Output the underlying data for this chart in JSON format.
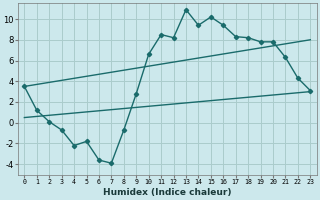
{
  "xlabel": "Humidex (Indice chaleur)",
  "background_color": "#cce8ec",
  "grid_color": "#aacccc",
  "line_color": "#1a6b6b",
  "xlim": [
    -0.5,
    23.5
  ],
  "ylim": [
    -5.0,
    11.5
  ],
  "xticks": [
    0,
    1,
    2,
    3,
    4,
    5,
    6,
    7,
    8,
    9,
    10,
    11,
    12,
    13,
    14,
    15,
    16,
    17,
    18,
    19,
    20,
    21,
    22,
    23
  ],
  "yticks": [
    -4,
    -2,
    0,
    2,
    4,
    6,
    8,
    10
  ],
  "line1_x": [
    0,
    1,
    2,
    3,
    4,
    5,
    6,
    7,
    8,
    9,
    10,
    11,
    12,
    13,
    14,
    15,
    16,
    17,
    18,
    19,
    20,
    21,
    22,
    23
  ],
  "line1_y": [
    3.5,
    1.2,
    0.1,
    -0.7,
    -2.2,
    -1.8,
    -3.6,
    -3.9,
    -0.7,
    2.8,
    6.6,
    8.5,
    8.2,
    10.9,
    9.4,
    10.2,
    9.4,
    8.3,
    8.2,
    7.8,
    7.8,
    6.3,
    4.3,
    3.1
  ],
  "line2_x": [
    0,
    23
  ],
  "line2_y": [
    3.5,
    8.0
  ],
  "line3_x": [
    0,
    23
  ],
  "line3_y": [
    0.5,
    3.0
  ]
}
